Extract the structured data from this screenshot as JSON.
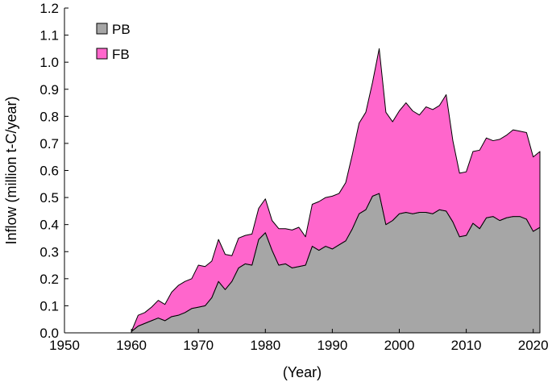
{
  "chart_data": {
    "type": "area",
    "stacked": true,
    "xlabel": "(Year)",
    "ylabel": "Inflow (million t-C/year)",
    "xlim": [
      1950,
      2021
    ],
    "ylim": [
      0,
      1.2
    ],
    "x_ticks": [
      "1950",
      "1960",
      "1970",
      "1980",
      "1990",
      "2000",
      "2010",
      "2020"
    ],
    "y_ticks": [
      "0.0",
      "0.1",
      "0.2",
      "0.3",
      "0.4",
      "0.5",
      "0.6",
      "0.7",
      "0.8",
      "0.9",
      "1.0",
      "1.1",
      "1.2"
    ],
    "legend_position": "top-left",
    "grid": false,
    "x": [
      1960,
      1961,
      1962,
      1963,
      1964,
      1965,
      1966,
      1967,
      1968,
      1969,
      1970,
      1971,
      1972,
      1973,
      1974,
      1975,
      1976,
      1977,
      1978,
      1979,
      1980,
      1981,
      1982,
      1983,
      1984,
      1985,
      1986,
      1987,
      1988,
      1989,
      1990,
      1991,
      1992,
      1993,
      1994,
      1995,
      1996,
      1997,
      1998,
      1999,
      2000,
      2001,
      2002,
      2003,
      2004,
      2005,
      2006,
      2007,
      2008,
      2009,
      2010,
      2011,
      2012,
      2013,
      2014,
      2015,
      2016,
      2017,
      2018,
      2019,
      2020,
      2021
    ],
    "series": [
      {
        "name": "PB",
        "color": "#a6a6a6",
        "values": [
          0.005,
          0.025,
          0.035,
          0.045,
          0.055,
          0.045,
          0.06,
          0.065,
          0.075,
          0.09,
          0.095,
          0.1,
          0.13,
          0.19,
          0.16,
          0.19,
          0.24,
          0.255,
          0.25,
          0.345,
          0.37,
          0.305,
          0.25,
          0.255,
          0.24,
          0.245,
          0.25,
          0.32,
          0.305,
          0.32,
          0.31,
          0.325,
          0.34,
          0.385,
          0.44,
          0.455,
          0.505,
          0.515,
          0.4,
          0.415,
          0.44,
          0.445,
          0.44,
          0.445,
          0.445,
          0.44,
          0.455,
          0.45,
          0.41,
          0.355,
          0.36,
          0.405,
          0.385,
          0.425,
          0.43,
          0.415,
          0.425,
          0.43,
          0.43,
          0.42,
          0.375,
          0.39
        ]
      },
      {
        "name": "FB",
        "color": "#ff66cc",
        "values": [
          0.0,
          0.04,
          0.04,
          0.05,
          0.065,
          0.06,
          0.09,
          0.11,
          0.115,
          0.11,
          0.155,
          0.145,
          0.135,
          0.155,
          0.13,
          0.095,
          0.11,
          0.105,
          0.115,
          0.115,
          0.125,
          0.11,
          0.135,
          0.13,
          0.14,
          0.145,
          0.105,
          0.155,
          0.18,
          0.18,
          0.195,
          0.19,
          0.215,
          0.275,
          0.335,
          0.36,
          0.42,
          0.535,
          0.415,
          0.365,
          0.38,
          0.405,
          0.38,
          0.36,
          0.39,
          0.385,
          0.385,
          0.43,
          0.3,
          0.235,
          0.235,
          0.265,
          0.29,
          0.295,
          0.28,
          0.3,
          0.305,
          0.32,
          0.315,
          0.32,
          0.275,
          0.28
        ]
      }
    ]
  }
}
